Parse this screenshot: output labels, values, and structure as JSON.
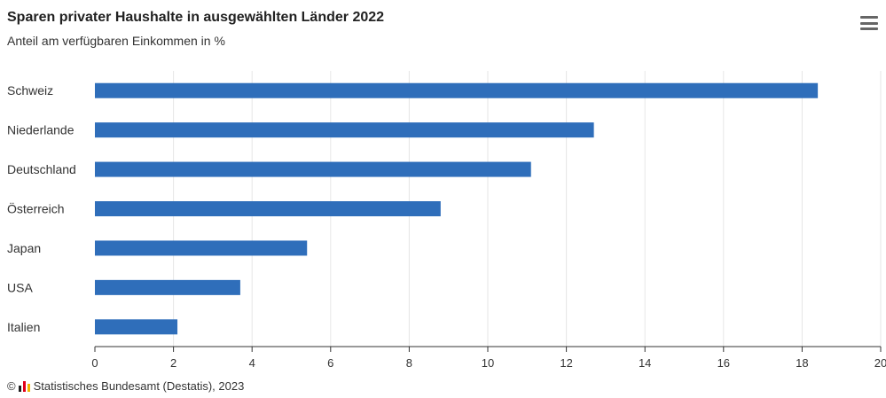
{
  "chart_data": {
    "type": "bar",
    "orientation": "horizontal",
    "title": "Sparen privater Haushalte in ausgewählten Länder 2022",
    "subtitle": "Anteil am verfügbaren Einkommen in %",
    "categories": [
      "Schweiz",
      "Niederlande",
      "Deutschland",
      "Österreich",
      "Japan",
      "USA",
      "Italien"
    ],
    "values": [
      18.4,
      12.7,
      11.1,
      8.8,
      5.4,
      3.7,
      2.1
    ],
    "xlim": [
      0,
      20
    ],
    "ticks": [
      "0",
      "2",
      "4",
      "6",
      "8",
      "10",
      "12",
      "14",
      "16",
      "18",
      "20"
    ],
    "grid": true,
    "legend": "none",
    "bar_color": "#2f6eba"
  },
  "credits": {
    "copyright_symbol": "©",
    "text": "Statistisches Bundesamt (Destatis), 2023"
  },
  "menu": {
    "icon": "hamburger-menu-icon"
  }
}
